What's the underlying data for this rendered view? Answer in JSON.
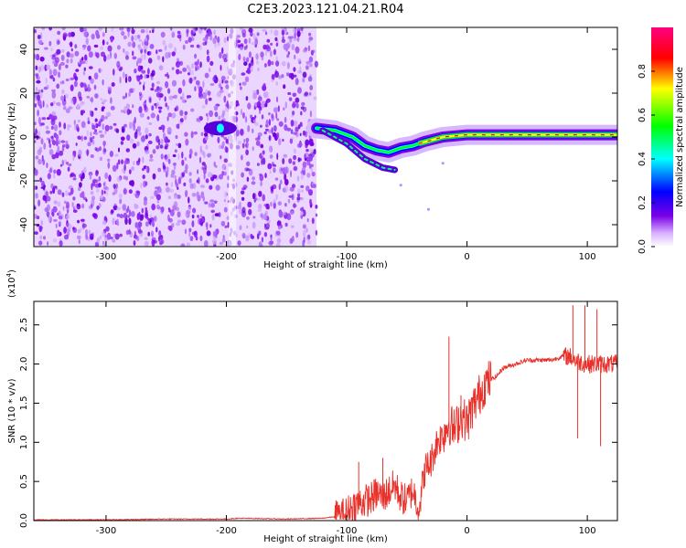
{
  "chart_data": [
    {
      "type": "heatmap",
      "title": "C2E3.2023.121.04.21.R04",
      "xlabel": "Height of straight line (km)",
      "ylabel": "Frequency (Hz)",
      "xlim": [
        -360,
        125
      ],
      "ylim": [
        -50,
        50
      ],
      "xticks": [
        -300,
        -200,
        -100,
        0,
        100
      ],
      "yticks": [
        -40,
        -20,
        0,
        20,
        40
      ],
      "colorbar": {
        "label": "Normalized spectral amplitude",
        "range": [
          0.0,
          1.0
        ],
        "ticks": [
          0.0,
          0.2,
          0.4,
          0.6,
          0.8
        ],
        "colormap": [
          "#ffffff",
          "#7a00e6",
          "#0000ff",
          "#00ffff",
          "#00ff00",
          "#ffff00",
          "#ff0000",
          "#ff0080"
        ]
      },
      "regions": [
        {
          "desc": "noise",
          "x": [
            -360,
            -125
          ],
          "y": [
            -50,
            50
          ],
          "amplitude": 0.1
        },
        {
          "desc": "signal trace",
          "points": [
            [
              -125,
              4
            ],
            [
              -110,
              3
            ],
            [
              -95,
              0
            ],
            [
              -85,
              -4
            ],
            [
              -75,
              -6
            ],
            [
              -65,
              -7
            ],
            [
              -55,
              -5
            ],
            [
              -45,
              -4
            ],
            [
              -35,
              -2
            ],
            [
              -20,
              0
            ],
            [
              0,
              1
            ],
            [
              30,
              1
            ],
            [
              60,
              1
            ],
            [
              90,
              1
            ],
            [
              125,
              1
            ]
          ]
        }
      ],
      "grid": false
    },
    {
      "type": "line",
      "xlabel": "Height of straight line (km)",
      "ylabel": "SNR (10 * v/v)",
      "yscale_label": "(x10",
      "yscale_exponent": "4",
      "xlim": [
        -360,
        125
      ],
      "ylim": [
        0,
        2.8
      ],
      "xticks": [
        -300,
        -200,
        -100,
        0,
        100
      ],
      "yticks": [
        0.0,
        0.5,
        1.0,
        1.5,
        2.0,
        2.5
      ],
      "series": [
        {
          "color": "#e8312a",
          "x": [
            -360,
            -300,
            -250,
            -200,
            -190,
            -150,
            -120,
            -105,
            -100,
            -95,
            -90,
            -80,
            -75,
            -70,
            -60,
            -55,
            -50,
            -45,
            -40,
            -35,
            -30,
            -25,
            -20,
            -15,
            -10,
            -5,
            0,
            5,
            10,
            15,
            20,
            25,
            30,
            40,
            50,
            60,
            70,
            80,
            85,
            90,
            95,
            100,
            105,
            110,
            115,
            120,
            125
          ],
          "y": [
            0.01,
            0.01,
            0.02,
            0.02,
            0.03,
            0.02,
            0.03,
            0.06,
            0.1,
            0.18,
            0.22,
            0.28,
            0.35,
            0.3,
            0.45,
            0.3,
            0.25,
            0.4,
            0.15,
            0.65,
            0.75,
            1.0,
            1.1,
            1.25,
            1.15,
            1.35,
            1.25,
            1.45,
            1.6,
            1.75,
            1.8,
            1.85,
            1.95,
            2.0,
            2.05,
            2.05,
            2.05,
            2.1,
            2.1,
            2.05,
            2.02,
            2.0,
            2.0,
            2.0,
            2.0,
            2.0,
            2.0
          ]
        }
      ],
      "grid": false
    }
  ]
}
